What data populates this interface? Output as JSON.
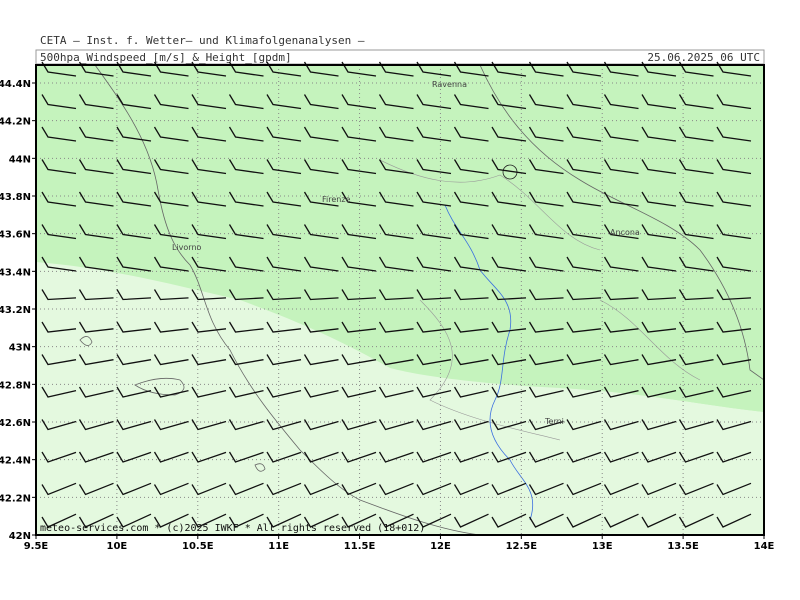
{
  "header": {
    "institute": "CETA — Inst. f. Wetter— und Klimafolgenanalysen —",
    "product": "500hpa_Windspeed_[m/s]_&_Height_[gpdm]",
    "valid": "25.06.2025 06 UTC"
  },
  "map": {
    "lat_ticks": [
      {
        "value": 42,
        "label": "42N"
      },
      {
        "value": 42.2,
        "label": "42.2N"
      },
      {
        "value": 42.4,
        "label": "42.4N"
      },
      {
        "value": 42.6,
        "label": "42.6N"
      },
      {
        "value": 42.8,
        "label": "42.8N"
      },
      {
        "value": 43,
        "label": "43N"
      },
      {
        "value": 43.2,
        "label": "43.2N"
      },
      {
        "value": 43.4,
        "label": "43.4N"
      },
      {
        "value": 43.6,
        "label": "43.6N"
      },
      {
        "value": 43.8,
        "label": "43.8N"
      },
      {
        "value": 44,
        "label": "44N"
      },
      {
        "value": 44.2,
        "label": "44.2N"
      },
      {
        "value": 44.4,
        "label": "44.4N"
      }
    ],
    "lon_ticks": [
      {
        "value": 9.5,
        "label": "9.5E"
      },
      {
        "value": 10,
        "label": "10E"
      },
      {
        "value": 10.5,
        "label": "10.5E"
      },
      {
        "value": 11,
        "label": "11E"
      },
      {
        "value": 11.5,
        "label": "11.5E"
      },
      {
        "value": 12,
        "label": "12E"
      },
      {
        "value": 12.5,
        "label": "12.5E"
      },
      {
        "value": 13,
        "label": "13E"
      },
      {
        "value": 13.5,
        "label": "13.5E"
      },
      {
        "value": 14,
        "label": "14E"
      }
    ],
    "cities": [
      "Ravenna",
      "Firenze",
      "Livorno",
      "Ancona",
      "Terni"
    ]
  },
  "footer": "meteo-services.com * (c)2025 IWKF * All rights reserved (18+012)"
}
